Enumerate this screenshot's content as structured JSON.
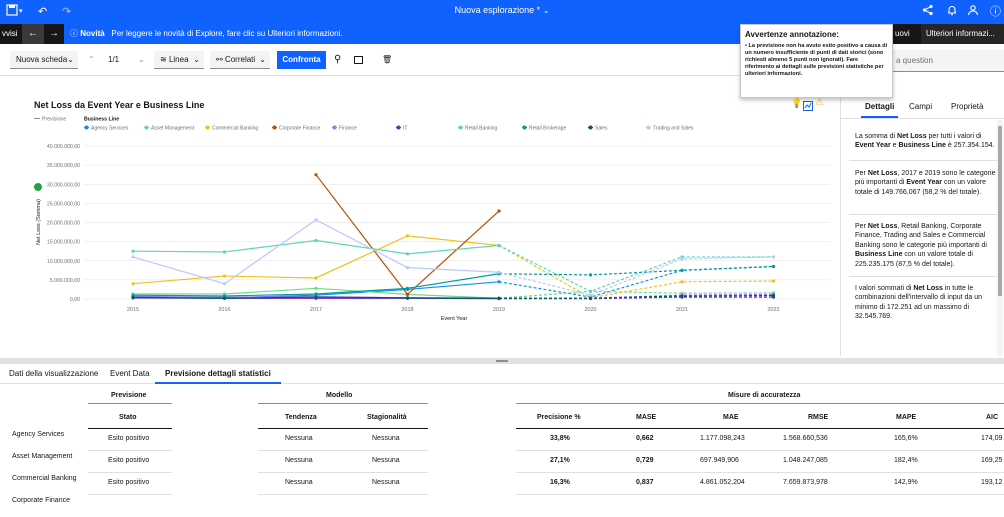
{
  "topbar": {
    "title": "Nuova esplorazione *"
  },
  "notice": {
    "left_tab": "vvisi",
    "heading": "Novità",
    "text": "Per leggere le novità di Explore, fare clic su Ulteriori informazioni.",
    "right_tab": "uovi",
    "more_info": "Ulteriori informazi..."
  },
  "toolbar": {
    "new_tab": "Nuova scheda",
    "page": "1/1",
    "viz_type": "Linea",
    "related": "Correlati",
    "compare": "Confronta",
    "search_placeholder": "a question"
  },
  "popup": {
    "title": "Avvertenze annotazione:",
    "body": "• La previsione non ha avuto esito positivo a causa di un numero insufficiente di punti di dati storici (sono richiesti almeno 5 punti non ignorati). Fare riferimento ai dettagli sulle previsioni statistiche per ulteriori informazioni."
  },
  "chart_data": {
    "type": "line",
    "title": "Net Loss da Event Year e Business Line",
    "forecast_label": "Previsione",
    "legend_title": "Business Line",
    "xlabel": "Event Year",
    "ylabel": "Net Loss (Somma)",
    "x": [
      "2015",
      "2016",
      "2017",
      "2018",
      "2019",
      "2020",
      "2021",
      "2022"
    ],
    "yticks": [
      "0,00",
      "5.000.000,00",
      "10.000.000,00",
      "15.000.000,00",
      "20.000.000,00",
      "25.000.000,00",
      "30.000.000,00",
      "35.000.000,00",
      "40.000.000,00"
    ],
    "ylim": [
      0,
      40000000
    ],
    "forecast_start": "2019",
    "series": [
      {
        "name": "Agency Services",
        "color": "#1192e8",
        "values": [
          700000,
          300000,
          1000000,
          2500000,
          4500000,
          500000,
          7500000,
          8500000
        ]
      },
      {
        "name": "Asset Management",
        "color": "#6fdc8c",
        "values": [
          1300000,
          1300000,
          2800000,
          1200000,
          200000,
          2000000,
          1500000,
          1600000
        ]
      },
      {
        "name": "Commercial Banking",
        "color": "#f1c21b",
        "values": [
          4000000,
          6000000,
          5500000,
          16500000,
          14000000,
          300000,
          4500000,
          4700000
        ]
      },
      {
        "name": "Corporate Finance",
        "color": "#ba4e00",
        "values": [
          null,
          null,
          32500000,
          1200000,
          23000000,
          null,
          null,
          null
        ]
      },
      {
        "name": "Finance",
        "color": "#a56eff",
        "values": [
          600000,
          500000,
          600000,
          300000,
          200000,
          200000,
          1000000,
          1200000
        ]
      },
      {
        "name": "IT",
        "color": "#6929c4",
        "values": [
          300000,
          200000,
          200000,
          200000,
          100000,
          100000,
          500000,
          500000
        ]
      },
      {
        "name": "Retail Banking",
        "color": "#5cd6b8",
        "values": [
          12500000,
          12300000,
          15300000,
          11800000,
          14000000,
          2000000,
          11000000,
          11000000
        ]
      },
      {
        "name": "Retail Brokerage",
        "color": "#009d9a",
        "values": [
          1000000,
          800000,
          1300000,
          2800000,
          6600000,
          6300000,
          7500000,
          8500000
        ]
      },
      {
        "name": "Sales",
        "color": "#005d5d",
        "values": [
          400000,
          200000,
          500000,
          300000,
          200000,
          200000,
          800000,
          900000
        ]
      },
      {
        "name": "Trading and Sales",
        "color": "#bac8ff",
        "values": [
          11000000,
          4000000,
          20700000,
          8200000,
          7000000,
          1000000,
          10500000,
          11000000
        ]
      }
    ]
  },
  "right_panel": {
    "tabs": [
      "Dettagli",
      "Campi",
      "Proprietà"
    ],
    "cards": [
      [
        {
          "t": "La somma di "
        },
        {
          "t": "Net Loss",
          "b": true
        },
        {
          "t": " per tutti i valori di "
        },
        {
          "t": "Event Year",
          "b": true
        },
        {
          "t": " e "
        },
        {
          "t": "Business Line",
          "b": true
        },
        {
          "t": " è 257.354.154."
        }
      ],
      [
        {
          "t": "Per "
        },
        {
          "t": "Net Loss",
          "b": true
        },
        {
          "t": ", 2017 e 2019 sono le categorie più importanti di "
        },
        {
          "t": "Event Year",
          "b": true
        },
        {
          "t": " con un valore totale di 149.766.067 (58,2 % del totale)."
        }
      ],
      [
        {
          "t": "Per "
        },
        {
          "t": "Net Loss",
          "b": true
        },
        {
          "t": ", Retail Banking, Corporate Finance, Trading and Sales e Commercial Banking sono le categorie più importanti di "
        },
        {
          "t": "Business Line",
          "b": true
        },
        {
          "t": " con un valore totale di 225.235.175 (87,5 % del totale)."
        }
      ],
      [
        {
          "t": "I valori sommati di "
        },
        {
          "t": "Net Loss",
          "b": true
        },
        {
          "t": " in tutte le combinazioni dell'intervallo di input da un minimo di 172.251 ad un massimo di 32.545.769."
        }
      ]
    ]
  },
  "bottom_tabs": [
    "Dati della visualizzazione",
    "Event Data",
    "Previsione dettagli statistici"
  ],
  "table": {
    "group_previsione": "Previsione",
    "group_modello": "Modello",
    "group_misure": "Misure di accuratezza",
    "col_stato": "Stato",
    "col_tendenza": "Tendenza",
    "col_stagionalita": "Stagionalità",
    "col_precisione": "Precisione %",
    "col_mase": "MASE",
    "col_mae": "MAE",
    "col_rmse": "RMSE",
    "col_mape": "MAPE",
    "col_aic": "AIC",
    "rows": [
      {
        "name": "Agency Services",
        "stato": "Esito positivo",
        "tendenza": "Nessuna",
        "stagionalita": "Nessuna",
        "precisione": "33,8%",
        "mase": "0,662",
        "mae": "1.177.098,243",
        "rmse": "1.568.660,536",
        "mape": "165,6%",
        "aic": "174,09"
      },
      {
        "name": "Asset Management",
        "stato": "Esito positivo",
        "tendenza": "Nessuna",
        "stagionalita": "Nessuna",
        "precisione": "27,1%",
        "mase": "0,729",
        "mae": "697.949,906",
        "rmse": "1.048.247,085",
        "mape": "182,4%",
        "aic": "169,25"
      },
      {
        "name": "Commercial Banking",
        "stato": "Esito positivo",
        "tendenza": "Nessuna",
        "stagionalita": "Nessuna",
        "precisione": "16,3%",
        "mase": "0,837",
        "mae": "4.861.052,204",
        "rmse": "7.659.873,978",
        "mape": "142,9%",
        "aic": "193,12"
      },
      {
        "name": "Corporate Finance"
      }
    ]
  }
}
